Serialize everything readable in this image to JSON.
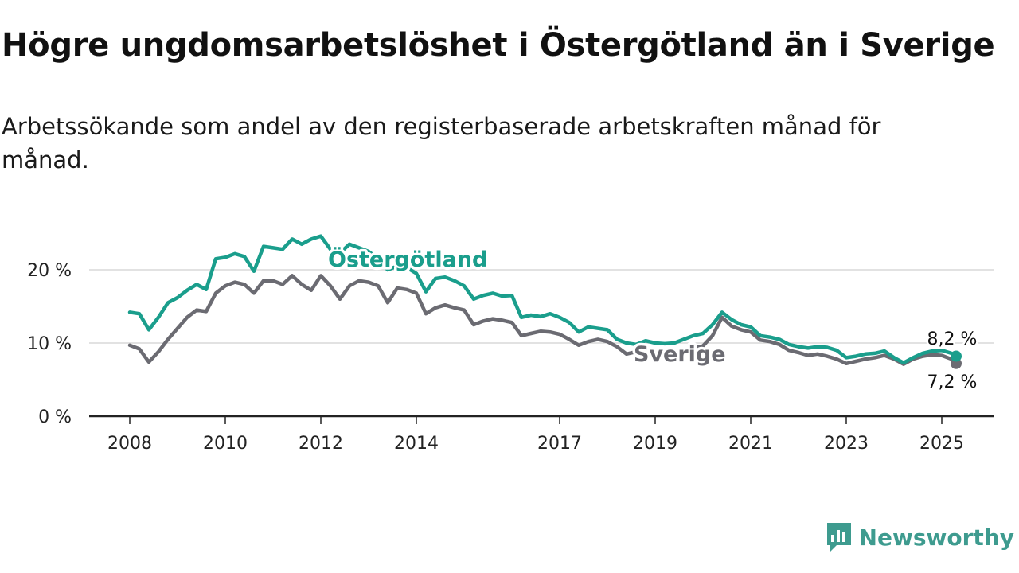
{
  "title": "Högre ungdomsarbetslöshet i Östergötland än i Sverige",
  "subtitle": "Arbetssökande som andel av den registerbaserade arbetskraften månad för månad.",
  "brand": {
    "name": "Newsworthy",
    "color": "#3e9b8f"
  },
  "colors": {
    "ostergotland": "#1a9e8c",
    "sverige": "#6b6b72"
  },
  "chart_data": {
    "type": "line",
    "title": "Högre ungdomsarbetslöshet i Östergötland än i Sverige",
    "ylim": [
      0,
      20
    ],
    "y_ticks": [
      0,
      10,
      20
    ],
    "y_tick_labels": [
      "0 %",
      "10 %",
      "20 %"
    ],
    "x_range": [
      2007.6,
      2026.2
    ],
    "x_ticks": [
      2008,
      2010,
      2012,
      2014,
      2017,
      2019,
      2021,
      2023,
      2025
    ],
    "x_tick_labels": [
      "2008",
      "2010",
      "2012",
      "2014",
      "2017",
      "2019",
      "2021",
      "2023",
      "2025"
    ],
    "grid": "horizontal",
    "series": [
      {
        "name": "Östergötland",
        "color": "#1a9e8c",
        "end_label": "8,2 %",
        "x": [
          2008.0,
          2008.2,
          2008.4,
          2008.6,
          2008.8,
          2009.0,
          2009.2,
          2009.4,
          2009.6,
          2009.8,
          2010.0,
          2010.2,
          2010.4,
          2010.6,
          2010.8,
          2011.0,
          2011.2,
          2011.4,
          2011.6,
          2011.8,
          2012.0,
          2012.2,
          2012.4,
          2012.6,
          2012.8,
          2013.0,
          2013.2,
          2013.4,
          2013.6,
          2013.8,
          2014.0,
          2014.2,
          2014.4,
          2014.6,
          2014.8,
          2015.0,
          2015.2,
          2015.4,
          2015.6,
          2015.8,
          2016.0,
          2016.2,
          2016.4,
          2016.6,
          2016.8,
          2017.0,
          2017.2,
          2017.4,
          2017.6,
          2017.8,
          2018.0,
          2018.2,
          2018.4,
          2018.6,
          2018.8,
          2019.0,
          2019.2,
          2019.4,
          2019.6,
          2019.8,
          2020.0,
          2020.2,
          2020.4,
          2020.6,
          2020.8,
          2021.0,
          2021.2,
          2021.4,
          2021.6,
          2021.8,
          2022.0,
          2022.2,
          2022.4,
          2022.6,
          2022.8,
          2023.0,
          2023.2,
          2023.4,
          2023.6,
          2023.8,
          2024.0,
          2024.2,
          2024.4,
          2024.6,
          2024.8,
          2025.0,
          2025.2,
          2025.3
        ],
        "values": [
          14.2,
          14.0,
          11.8,
          13.5,
          15.5,
          16.2,
          17.2,
          18.0,
          17.3,
          21.5,
          21.7,
          22.2,
          21.8,
          19.8,
          23.2,
          23.0,
          22.8,
          24.2,
          23.5,
          24.2,
          24.6,
          22.8,
          22.3,
          23.5,
          23.0,
          22.5,
          21.5,
          20.0,
          20.5,
          20.3,
          19.5,
          17.0,
          18.8,
          19.0,
          18.5,
          17.8,
          16.0,
          16.5,
          16.8,
          16.4,
          16.5,
          13.5,
          13.8,
          13.6,
          14.0,
          13.5,
          12.8,
          11.5,
          12.2,
          12.0,
          11.8,
          10.5,
          10.0,
          9.8,
          10.3,
          10.0,
          9.9,
          10.0,
          10.5,
          11.0,
          11.3,
          12.5,
          14.2,
          13.2,
          12.5,
          12.2,
          11.0,
          10.8,
          10.5,
          9.8,
          9.5,
          9.3,
          9.5,
          9.4,
          9.0,
          8.0,
          8.2,
          8.5,
          8.6,
          8.9,
          8.0,
          7.3,
          8.0,
          8.6,
          8.9,
          9.0,
          8.6,
          8.2
        ]
      },
      {
        "name": "Sverige",
        "color": "#6b6b72",
        "end_label": "7,2 %",
        "x": [
          2008.0,
          2008.2,
          2008.4,
          2008.6,
          2008.8,
          2009.0,
          2009.2,
          2009.4,
          2009.6,
          2009.8,
          2010.0,
          2010.2,
          2010.4,
          2010.6,
          2010.8,
          2011.0,
          2011.2,
          2011.4,
          2011.6,
          2011.8,
          2012.0,
          2012.2,
          2012.4,
          2012.6,
          2012.8,
          2013.0,
          2013.2,
          2013.4,
          2013.6,
          2013.8,
          2014.0,
          2014.2,
          2014.4,
          2014.6,
          2014.8,
          2015.0,
          2015.2,
          2015.4,
          2015.6,
          2015.8,
          2016.0,
          2016.2,
          2016.4,
          2016.6,
          2016.8,
          2017.0,
          2017.2,
          2017.4,
          2017.6,
          2017.8,
          2018.0,
          2018.2,
          2018.4,
          2018.6,
          2018.8,
          2019.0,
          2019.2,
          2019.4,
          2019.6,
          2019.8,
          2020.0,
          2020.2,
          2020.4,
          2020.6,
          2020.8,
          2021.0,
          2021.2,
          2021.4,
          2021.6,
          2021.8,
          2022.0,
          2022.2,
          2022.4,
          2022.6,
          2022.8,
          2023.0,
          2023.2,
          2023.4,
          2023.6,
          2023.8,
          2024.0,
          2024.2,
          2024.4,
          2024.6,
          2024.8,
          2025.0,
          2025.2,
          2025.3
        ],
        "values": [
          9.7,
          9.2,
          7.4,
          8.8,
          10.5,
          12.0,
          13.5,
          14.5,
          14.3,
          16.8,
          17.8,
          18.3,
          18.0,
          16.8,
          18.5,
          18.5,
          18.0,
          19.2,
          18.0,
          17.2,
          19.2,
          17.8,
          16.0,
          17.8,
          18.5,
          18.3,
          17.8,
          15.5,
          17.5,
          17.3,
          16.8,
          14.0,
          14.8,
          15.2,
          14.8,
          14.5,
          12.5,
          13.0,
          13.3,
          13.1,
          12.8,
          11.0,
          11.3,
          11.6,
          11.5,
          11.2,
          10.5,
          9.7,
          10.2,
          10.5,
          10.2,
          9.5,
          8.5,
          8.8,
          8.7,
          8.4,
          8.3,
          8.4,
          8.9,
          9.3,
          9.6,
          11.0,
          13.5,
          12.3,
          11.8,
          11.5,
          10.4,
          10.2,
          9.8,
          9.0,
          8.7,
          8.3,
          8.5,
          8.2,
          7.8,
          7.2,
          7.5,
          7.8,
          8.0,
          8.3,
          7.8,
          7.1,
          7.8,
          8.2,
          8.4,
          8.3,
          7.8,
          7.2
        ]
      }
    ]
  }
}
